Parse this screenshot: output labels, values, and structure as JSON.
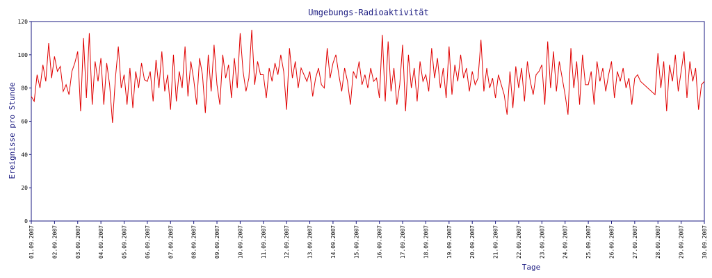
{
  "chart_data": {
    "type": "line",
    "title": "Umgebungs-Radioaktivität",
    "xlabel": "Tage",
    "ylabel": "Ereignisse pro Stunde",
    "color": "#e00000",
    "xlim": [
      0,
      29
    ],
    "ylim": [
      0,
      120
    ],
    "yticks": [
      0,
      20,
      40,
      60,
      80,
      100,
      120
    ],
    "xticks": [
      {
        "value": 0,
        "label": "01.09.2007"
      },
      {
        "value": 1,
        "label": "02.09.2007"
      },
      {
        "value": 2,
        "label": "03.09.2007"
      },
      {
        "value": 3,
        "label": "04.09.2007"
      },
      {
        "value": 4,
        "label": "05.09.2007"
      },
      {
        "value": 5,
        "label": "06.09.2007"
      },
      {
        "value": 6,
        "label": "07.09.2007"
      },
      {
        "value": 7,
        "label": "08.09.2007"
      },
      {
        "value": 8,
        "label": "09.09.2007"
      },
      {
        "value": 9,
        "label": "10.09.2007"
      },
      {
        "value": 10,
        "label": "11.09.2007"
      },
      {
        "value": 11,
        "label": "12.09.2007"
      },
      {
        "value": 12,
        "label": "13.09.2007"
      },
      {
        "value": 13,
        "label": "14.09.2007"
      },
      {
        "value": 14,
        "label": "15.09.2007"
      },
      {
        "value": 15,
        "label": "16.09.2007"
      },
      {
        "value": 16,
        "label": "17.09.2007"
      },
      {
        "value": 17,
        "label": "18.09.2007"
      },
      {
        "value": 18,
        "label": "19.09.2007"
      },
      {
        "value": 19,
        "label": "20.09.2007"
      },
      {
        "value": 20,
        "label": "21.09.2007"
      },
      {
        "value": 21,
        "label": "22.09.2007"
      },
      {
        "value": 22,
        "label": "23.09.2007"
      },
      {
        "value": 23,
        "label": "24.09.2007"
      },
      {
        "value": 24,
        "label": "25.09.2007"
      },
      {
        "value": 25,
        "label": "26.09.2007"
      },
      {
        "value": 26,
        "label": "27.09.2007"
      },
      {
        "value": 27,
        "label": "28.09.2007"
      },
      {
        "value": 28,
        "label": "29.09.2007"
      },
      {
        "value": 29,
        "label": "30.09.2007"
      }
    ],
    "x": [
      0,
      0.125,
      0.25,
      0.375,
      0.5,
      0.625,
      0.75,
      0.875,
      1,
      1.125,
      1.25,
      1.375,
      1.5,
      1.625,
      1.75,
      1.875,
      2,
      2.125,
      2.25,
      2.375,
      2.5,
      2.625,
      2.75,
      2.875,
      3,
      3.125,
      3.25,
      3.375,
      3.5,
      3.625,
      3.75,
      3.875,
      4,
      4.125,
      4.25,
      4.375,
      4.5,
      4.625,
      4.75,
      4.875,
      5,
      5.125,
      5.25,
      5.375,
      5.5,
      5.625,
      5.75,
      5.875,
      6,
      6.125,
      6.25,
      6.375,
      6.5,
      6.625,
      6.75,
      6.875,
      7,
      7.125,
      7.25,
      7.375,
      7.5,
      7.625,
      7.75,
      7.875,
      8,
      8.125,
      8.25,
      8.375,
      8.5,
      8.625,
      8.75,
      8.875,
      9,
      9.125,
      9.25,
      9.375,
      9.5,
      9.625,
      9.75,
      9.875,
      10,
      10.125,
      10.25,
      10.375,
      10.5,
      10.625,
      10.75,
      10.875,
      11,
      11.125,
      11.25,
      11.375,
      11.5,
      11.625,
      11.75,
      11.875,
      12,
      12.125,
      12.25,
      12.375,
      12.5,
      12.625,
      12.75,
      12.875,
      13,
      13.125,
      13.25,
      13.375,
      13.5,
      13.625,
      13.75,
      13.875,
      14,
      14.125,
      14.25,
      14.375,
      14.5,
      14.625,
      14.75,
      14.875,
      15,
      15.125,
      15.25,
      15.375,
      15.5,
      15.625,
      15.75,
      15.875,
      16,
      16.125,
      16.25,
      16.375,
      16.5,
      16.625,
      16.75,
      16.875,
      17,
      17.125,
      17.25,
      17.375,
      17.5,
      17.625,
      17.75,
      17.875,
      18,
      18.125,
      18.25,
      18.375,
      18.5,
      18.625,
      18.75,
      18.875,
      19,
      19.125,
      19.25,
      19.375,
      19.5,
      19.625,
      19.75,
      19.875,
      20,
      20.125,
      20.25,
      20.375,
      20.5,
      20.625,
      20.75,
      20.875,
      21,
      21.125,
      21.25,
      21.375,
      21.5,
      21.625,
      21.75,
      21.875,
      22,
      22.125,
      22.25,
      22.375,
      22.5,
      22.625,
      22.75,
      22.875,
      23,
      23.125,
      23.25,
      23.375,
      23.5,
      23.625,
      23.75,
      23.875,
      24,
      24.125,
      24.25,
      24.375,
      24.5,
      24.625,
      24.75,
      24.875,
      25,
      25.125,
      25.25,
      25.375,
      25.5,
      25.625,
      25.75,
      25.875,
      26,
      26.125,
      26.25,
      26.875,
      27,
      27.125,
      27.25,
      27.375,
      27.5,
      27.625,
      27.75,
      27.875,
      28,
      28.125,
      28.25,
      28.375,
      28.5,
      28.625,
      28.75,
      28.875,
      29
    ],
    "values": [
      75,
      72,
      88,
      80,
      94,
      84,
      107,
      86,
      99,
      90,
      93,
      78,
      82,
      76,
      90,
      95,
      102,
      66,
      110,
      74,
      113,
      70,
      96,
      84,
      98,
      70,
      95,
      82,
      59,
      86,
      105,
      80,
      88,
      70,
      92,
      68,
      90,
      80,
      95,
      85,
      84,
      90,
      72,
      97,
      80,
      102,
      78,
      88,
      67,
      100,
      72,
      90,
      80,
      105,
      75,
      96,
      85,
      70,
      98,
      88,
      65,
      100,
      78,
      106,
      82,
      70,
      100,
      86,
      94,
      74,
      98,
      80,
      113,
      90,
      78,
      86,
      115,
      82,
      96,
      88,
      88,
      74,
      92,
      84,
      95,
      88,
      100,
      90,
      67,
      104,
      86,
      96,
      80,
      92,
      88,
      84,
      90,
      75,
      86,
      92,
      82,
      80,
      104,
      86,
      95,
      100,
      88,
      78,
      92,
      84,
      70,
      90,
      86,
      96,
      82,
      88,
      80,
      92,
      84,
      86,
      74,
      112,
      72,
      108,
      78,
      92,
      70,
      82,
      106,
      66,
      100,
      80,
      92,
      72,
      96,
      84,
      88,
      78,
      104,
      86,
      98,
      80,
      92,
      74,
      105,
      76,
      94,
      84,
      100,
      86,
      92,
      78,
      90,
      82,
      86,
      109,
      78,
      92,
      80,
      86,
      74,
      88,
      82,
      76,
      64,
      90,
      68,
      93,
      80,
      92,
      72,
      96,
      84,
      76,
      88,
      90,
      94,
      70,
      108,
      80,
      102,
      78,
      96,
      86,
      76,
      64,
      104,
      80,
      96,
      70,
      100,
      82,
      82,
      90,
      70,
      96,
      84,
      92,
      78,
      88,
      96,
      74,
      90,
      84,
      92,
      80,
      86,
      70,
      86,
      88,
      84,
      76,
      101,
      80,
      96,
      66,
      94,
      84,
      100,
      78,
      90,
      102,
      74,
      96,
      84,
      92,
      67,
      82,
      84
    ]
  }
}
